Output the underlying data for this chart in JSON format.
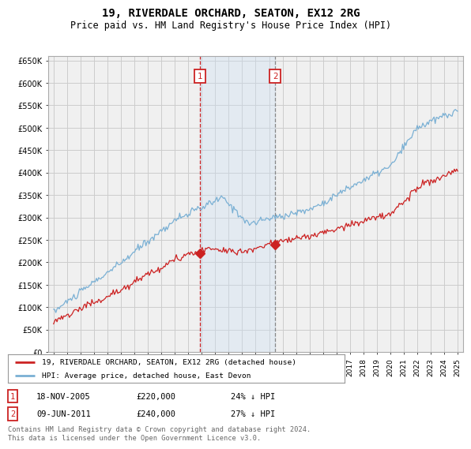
{
  "title": "19, RIVERDALE ORCHARD, SEATON, EX12 2RG",
  "subtitle": "Price paid vs. HM Land Registry's House Price Index (HPI)",
  "title_fontsize": 10,
  "subtitle_fontsize": 8.5,
  "background_color": "#ffffff",
  "grid_color": "#cccccc",
  "plot_bg_color": "#f0f0f0",
  "hpi_color": "#7ab0d4",
  "price_color": "#cc2222",
  "highlight_bg": "#ddeeff",
  "ylim": [
    0,
    660000
  ],
  "yticks": [
    0,
    50000,
    100000,
    150000,
    200000,
    250000,
    300000,
    350000,
    400000,
    450000,
    500000,
    550000,
    600000,
    650000
  ],
  "ytick_labels": [
    "£0",
    "£50K",
    "£100K",
    "£150K",
    "£200K",
    "£250K",
    "£300K",
    "£350K",
    "£400K",
    "£450K",
    "£500K",
    "£550K",
    "£600K",
    "£650K"
  ],
  "transaction1": {
    "date": "18-NOV-2005",
    "price": 220000,
    "pct": "24%",
    "direction": "↓",
    "label": "1",
    "year": 2005.88
  },
  "transaction2": {
    "date": "09-JUN-2011",
    "price": 240000,
    "pct": "27%",
    "direction": "↓",
    "label": "2",
    "year": 2011.45
  },
  "legend_line1": "19, RIVERDALE ORCHARD, SEATON, EX12 2RG (detached house)",
  "legend_line2": "HPI: Average price, detached house, East Devon",
  "footer": "Contains HM Land Registry data © Crown copyright and database right 2024.\nThis data is licensed under the Open Government Licence v3.0.",
  "x_start_year": 1995,
  "x_end_year": 2025
}
